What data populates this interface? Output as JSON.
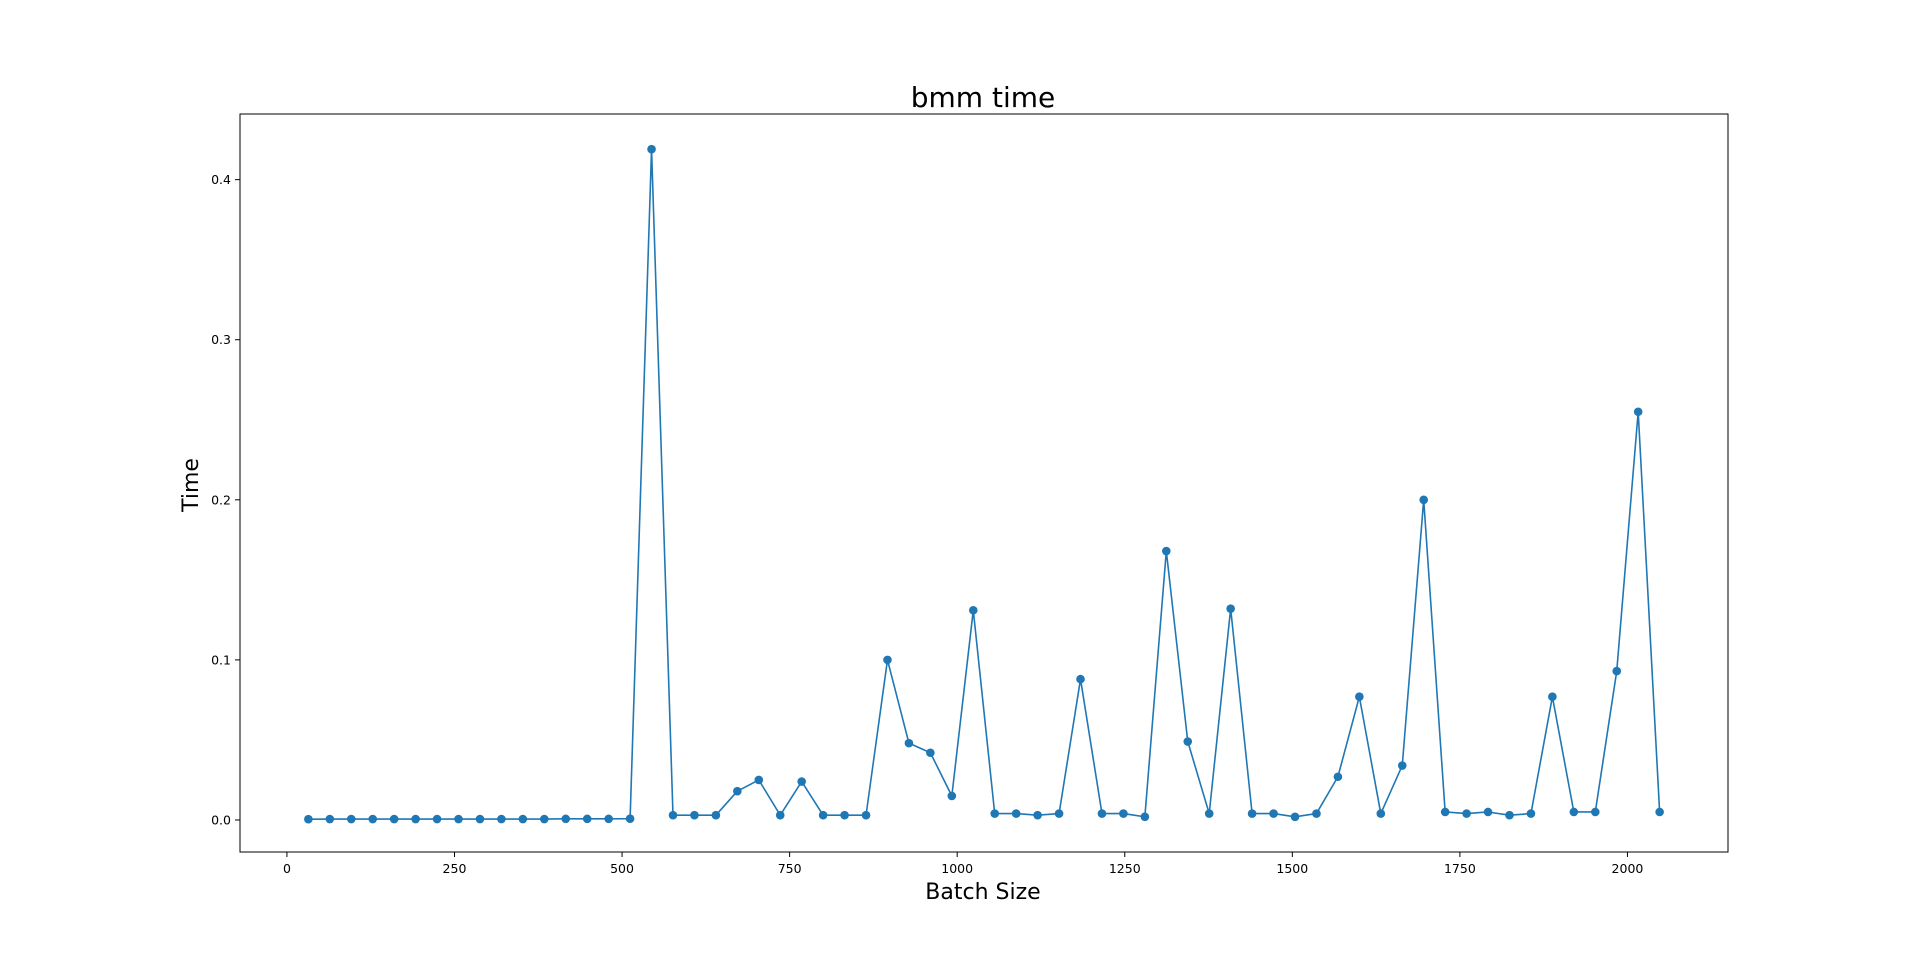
{
  "chart_data": {
    "type": "line",
    "title": "bmm time",
    "xlabel": "Batch Size",
    "ylabel": "Time",
    "xlim": [
      -70,
      2150
    ],
    "ylim": [
      -0.02,
      0.441
    ],
    "xticks": [
      0,
      250,
      500,
      750,
      1000,
      1250,
      1500,
      1750,
      2000
    ],
    "yticks": [
      0.0,
      0.1,
      0.2,
      0.3,
      0.4
    ],
    "xtick_labels": [
      "0",
      "250",
      "500",
      "750",
      "1000",
      "1250",
      "1500",
      "1750",
      "2000"
    ],
    "ytick_labels": [
      "0.0",
      "0.1",
      "0.2",
      "0.3",
      "0.4"
    ],
    "grid": false,
    "legend": false,
    "marker": "circle",
    "color": "#1f77b4",
    "series": [
      {
        "x": [
          32,
          64,
          96,
          128,
          160,
          192,
          224,
          256,
          288,
          320,
          352,
          384,
          416,
          448,
          480,
          512,
          544,
          576,
          608,
          640,
          672,
          704,
          736,
          768,
          800,
          832,
          864,
          896,
          928,
          960,
          992,
          1024,
          1056,
          1088,
          1120,
          1152,
          1184,
          1216,
          1248,
          1280,
          1312,
          1344,
          1376,
          1408,
          1440,
          1472,
          1504,
          1536,
          1568,
          1600,
          1632,
          1664,
          1696,
          1728,
          1760,
          1792,
          1824,
          1856,
          1888,
          1920,
          1952,
          1984,
          2016,
          2048
        ],
        "y": [
          0.0005,
          0.0006,
          0.0006,
          0.0006,
          0.0006,
          0.0006,
          0.0006,
          0.0006,
          0.0006,
          0.0006,
          0.0006,
          0.0006,
          0.0007,
          0.0007,
          0.0007,
          0.0008,
          0.419,
          0.003,
          0.003,
          0.003,
          0.018,
          0.025,
          0.003,
          0.024,
          0.003,
          0.003,
          0.003,
          0.1,
          0.048,
          0.042,
          0.015,
          0.131,
          0.004,
          0.004,
          0.003,
          0.004,
          0.088,
          0.004,
          0.004,
          0.002,
          0.168,
          0.049,
          0.004,
          0.132,
          0.004,
          0.004,
          0.002,
          0.004,
          0.027,
          0.077,
          0.004,
          0.034,
          0.2,
          0.005,
          0.004,
          0.005,
          0.003,
          0.004,
          0.077,
          0.005,
          0.005,
          0.093,
          0.255,
          0.005
        ]
      }
    ]
  }
}
